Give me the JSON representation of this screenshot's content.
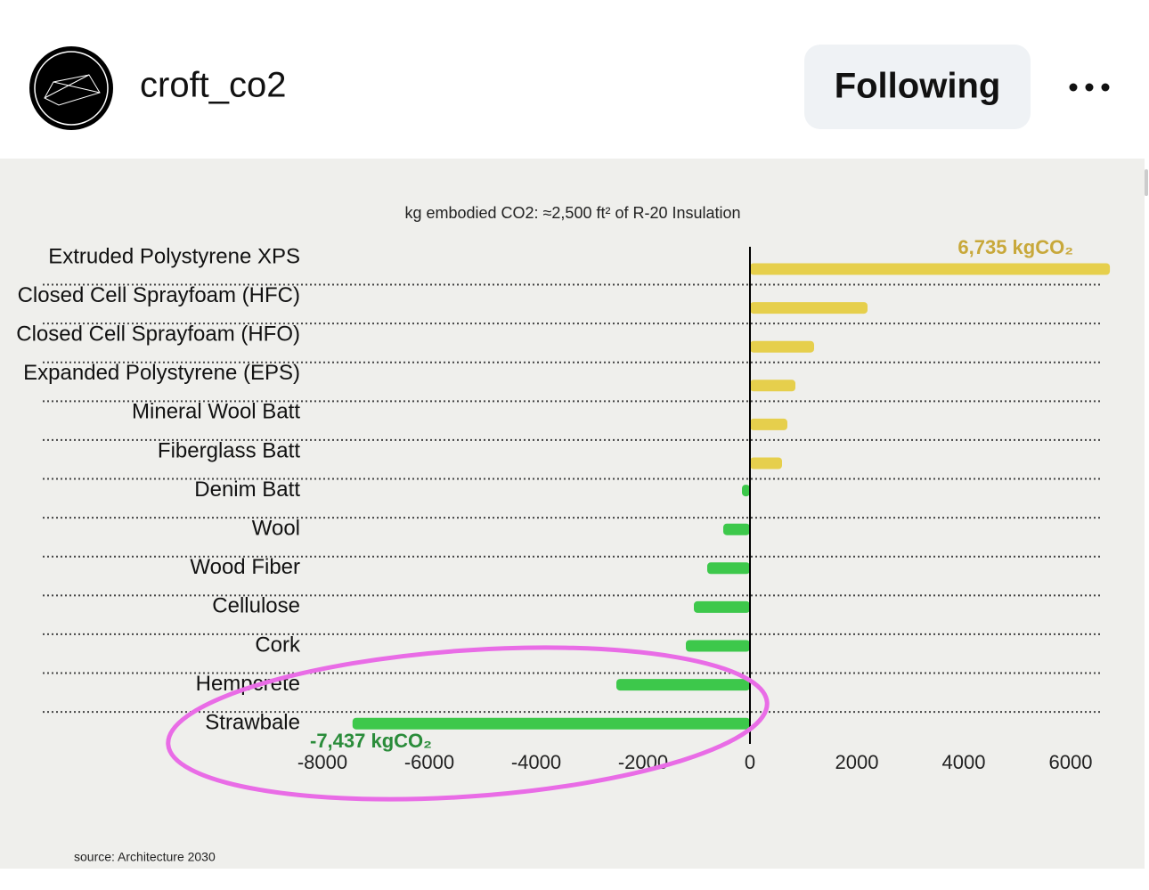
{
  "header": {
    "username": "croft_co2",
    "button": "Following"
  },
  "chart_data": {
    "type": "bar",
    "orientation": "horizontal",
    "title": "kg embodied CO2:  ≈2,500 ft² of R-20 Insulation",
    "source": "source: Architecture 2030",
    "categories": [
      "Extruded Polystyrene XPS",
      "Closed Cell Sprayfoam (HFC)",
      "Closed Cell Sprayfoam (HFO)",
      "Expanded Polystyrene (EPS)",
      "Mineral Wool Batt",
      "Fiberglass Batt",
      "Denim Batt",
      "Wool",
      "Wood Fiber",
      "Cellulose",
      "Cork",
      "Hempcrete",
      "Strawbale"
    ],
    "values": [
      6735,
      2200,
      1200,
      850,
      700,
      600,
      -150,
      -500,
      -800,
      -1050,
      -1200,
      -2500,
      -7437
    ],
    "value_labels": [
      "6,735 kgCO₂",
      null,
      null,
      null,
      null,
      null,
      null,
      null,
      null,
      null,
      null,
      null,
      "-7,437 kgCO₂"
    ],
    "colors": [
      "#e6cf4c",
      "#e6cf4c",
      "#e6cf4c",
      "#e6cf4c",
      "#e6cf4c",
      "#e6cf4c",
      "#3dc84b",
      "#3dc84b",
      "#3dc84b",
      "#3dc84b",
      "#3dc84b",
      "#3dc84b",
      "#3dc84b"
    ],
    "xlim": [
      -8000,
      7000
    ],
    "xticks": [
      -8000,
      -6000,
      -4000,
      -2000,
      0,
      2000,
      4000,
      6000
    ]
  }
}
